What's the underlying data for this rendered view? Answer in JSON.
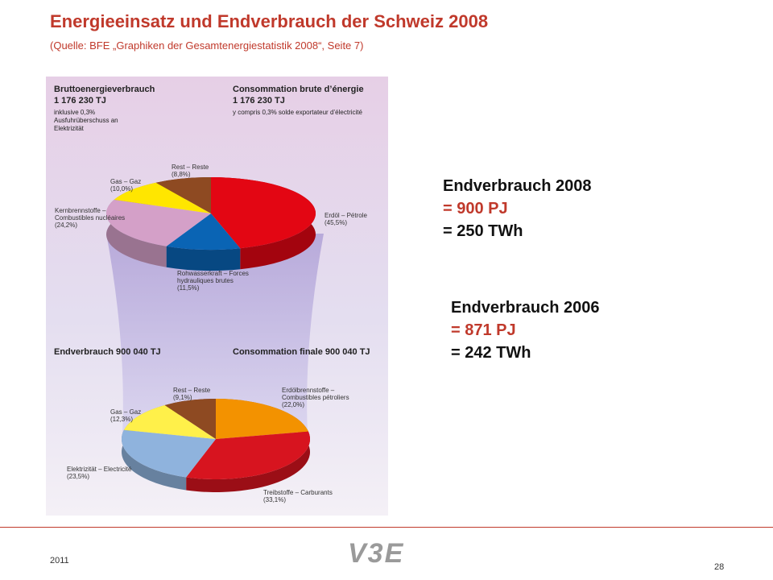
{
  "header": {
    "title": "Energieeinsatz und Endverbrauch der Schweiz 2008",
    "subtitle": "(Quelle: BFE „Graphiken der Gesamtenergiestatistik 2008“, Seite 7)"
  },
  "figure": {
    "top": {
      "de_title": "Bruttoenergieverbrauch",
      "de_total": "1 176 230 TJ",
      "de_note": "inklusive 0,3% Ausfuhrüberschuss an Elektrizität",
      "fr_title": "Consommation brute d’énergie",
      "fr_total": "1 176 230 TJ",
      "fr_note": "y compris 0,3% solde exportateur d’électricité"
    },
    "bottom": {
      "de_title": "Endverbrauch 900 040 TJ",
      "fr_title": "Consommation finale 900 040 TJ"
    }
  },
  "chart_data": [
    {
      "type": "pie",
      "categories": [
        "Erdöl – Pétrole",
        "Rohwasserkraft – Forces hydrauliques brutes",
        "Kernbrennstoffe – Combustibles nucléaires",
        "Gas – Gaz",
        "Rest – Reste"
      ],
      "values": [
        45.5,
        11.5,
        24.2,
        10.0,
        8.8
      ],
      "value_labels": [
        "(45,5%)",
        "(11,5%)",
        "(24,2%)",
        "(10,0%)",
        "(8,8%)"
      ],
      "colors": [
        "#e30613",
        "#0a64b4",
        "#d4a0c8",
        "#ffe600",
        "#8e4a22"
      ]
    },
    {
      "type": "pie",
      "categories": [
        "Erdölbrennstoffe – Combustibles pétroliers",
        "Treibstoffe – Carburants",
        "Elektrizität – Electricité",
        "Gas – Gaz",
        "Rest – Reste"
      ],
      "values": [
        22.0,
        33.1,
        23.5,
        12.3,
        9.1
      ],
      "value_labels": [
        "(22,0%)",
        "(33,1%)",
        "(23,5%)",
        "(12,3%)",
        "(9,1%)"
      ],
      "colors": [
        "#f39200",
        "#d7141f",
        "#8fb3dd",
        "#fff04a",
        "#8e4a22"
      ]
    }
  ],
  "side": [
    {
      "title": "Endverbrauch 2008",
      "pj": "= 900 PJ",
      "twh": "= 250 TWh"
    },
    {
      "title": "Endverbrauch 2006",
      "pj": "= 871 PJ",
      "twh": "= 242 TWh"
    }
  ],
  "footer": {
    "year": "2011",
    "logo": "V3E",
    "page": "28"
  }
}
